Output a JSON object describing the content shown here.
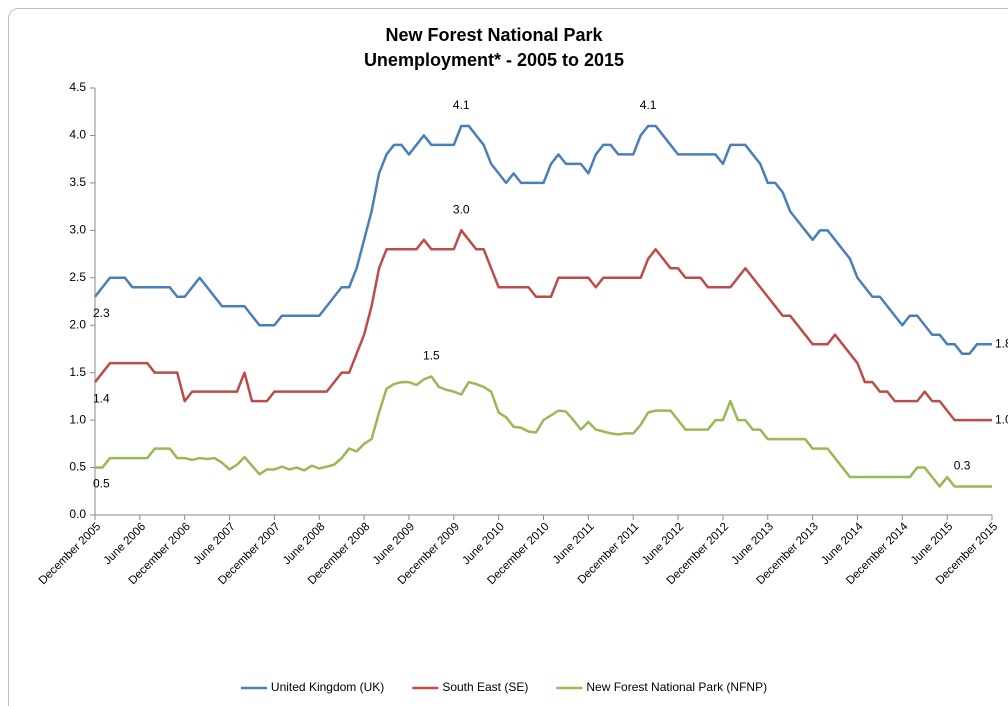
{
  "chart_data": {
    "type": "line",
    "title": [
      "New Forest National Park",
      "Unemployment* - 2005 to 2015"
    ],
    "categories": [
      "December 2005",
      null,
      null,
      null,
      null,
      null,
      "June 2006",
      null,
      null,
      null,
      null,
      null,
      "December 2006",
      null,
      null,
      null,
      null,
      null,
      "June 2007",
      null,
      null,
      null,
      null,
      null,
      "December 2007",
      null,
      null,
      null,
      null,
      null,
      "June 2008",
      null,
      null,
      null,
      null,
      null,
      "December 2008",
      null,
      null,
      null,
      null,
      null,
      "June 2009",
      null,
      null,
      null,
      null,
      null,
      "December 2009",
      null,
      null,
      null,
      null,
      null,
      "June 2010",
      null,
      null,
      null,
      null,
      null,
      "December 2010",
      null,
      null,
      null,
      null,
      null,
      "June 2011",
      null,
      null,
      null,
      null,
      null,
      "December 2011",
      null,
      null,
      null,
      null,
      null,
      "June 2012",
      null,
      null,
      null,
      null,
      null,
      "December 2012",
      null,
      null,
      null,
      null,
      null,
      "June 2013",
      null,
      null,
      null,
      null,
      null,
      "December 2013",
      null,
      null,
      null,
      null,
      null,
      "June 2014",
      null,
      null,
      null,
      null,
      null,
      "December 2014",
      null,
      null,
      null,
      null,
      null,
      "June 2015",
      null,
      null,
      null,
      null,
      null,
      "December 2015"
    ],
    "series": [
      {
        "name": "United Kingdom (UK)",
        "color": "#4a7ebb",
        "values": [
          2.3,
          2.4,
          2.5,
          2.5,
          2.5,
          2.4,
          2.4,
          2.4,
          2.4,
          2.4,
          2.4,
          2.3,
          2.3,
          2.4,
          2.5,
          2.4,
          2.3,
          2.2,
          2.2,
          2.2,
          2.2,
          2.1,
          2.0,
          2.0,
          2.0,
          2.1,
          2.1,
          2.1,
          2.1,
          2.1,
          2.1,
          2.2,
          2.3,
          2.4,
          2.4,
          2.6,
          2.9,
          3.2,
          3.6,
          3.8,
          3.9,
          3.9,
          3.8,
          3.9,
          4.0,
          3.9,
          3.9,
          3.9,
          3.9,
          4.1,
          4.1,
          4.0,
          3.9,
          3.7,
          3.6,
          3.5,
          3.6,
          3.5,
          3.5,
          3.5,
          3.5,
          3.7,
          3.8,
          3.7,
          3.7,
          3.7,
          3.6,
          3.8,
          3.9,
          3.9,
          3.8,
          3.8,
          3.8,
          4.0,
          4.1,
          4.1,
          4.0,
          3.9,
          3.8,
          3.8,
          3.8,
          3.8,
          3.8,
          3.8,
          3.7,
          3.9,
          3.9,
          3.9,
          3.8,
          3.7,
          3.5,
          3.5,
          3.4,
          3.2,
          3.1,
          3.0,
          2.9,
          3.0,
          3.0,
          2.9,
          2.8,
          2.7,
          2.5,
          2.4,
          2.3,
          2.3,
          2.2,
          2.1,
          2.0,
          2.1,
          2.1,
          2.0,
          1.9,
          1.9,
          1.8,
          1.8,
          1.7,
          1.7,
          1.8,
          1.8,
          1.8
        ],
        "value_labels": [
          "2.3",
          null,
          null,
          null,
          null,
          null,
          null,
          null,
          null,
          null,
          null,
          null,
          null,
          null,
          null,
          null,
          null,
          null,
          null,
          null,
          null,
          null,
          null,
          null,
          null,
          null,
          null,
          null,
          null,
          null,
          null,
          null,
          null,
          null,
          null,
          null,
          null,
          null,
          null,
          null,
          null,
          null,
          null,
          null,
          null,
          null,
          null,
          null,
          null,
          "4.1",
          null,
          null,
          null,
          null,
          null,
          null,
          null,
          null,
          null,
          null,
          null,
          null,
          null,
          null,
          null,
          null,
          null,
          null,
          null,
          null,
          null,
          null,
          null,
          null,
          "4.1",
          null,
          null,
          null,
          null,
          null,
          null,
          null,
          null,
          null,
          null,
          null,
          null,
          null,
          null,
          null,
          null,
          null,
          null,
          null,
          null,
          null,
          null,
          null,
          null,
          null,
          null,
          null,
          null,
          null,
          null,
          null,
          null,
          null,
          null,
          null,
          null,
          null,
          null,
          null,
          null,
          null,
          null,
          null,
          null,
          null,
          "1.8"
        ]
      },
      {
        "name": "South East (SE)",
        "color": "#be4b48",
        "values": [
          1.4,
          1.5,
          1.6,
          1.6,
          1.6,
          1.6,
          1.6,
          1.6,
          1.5,
          1.5,
          1.5,
          1.5,
          1.2,
          1.3,
          1.3,
          1.3,
          1.3,
          1.3,
          1.3,
          1.3,
          1.5,
          1.2,
          1.2,
          1.2,
          1.3,
          1.3,
          1.3,
          1.3,
          1.3,
          1.3,
          1.3,
          1.3,
          1.4,
          1.5,
          1.5,
          1.7,
          1.9,
          2.2,
          2.6,
          2.8,
          2.8,
          2.8,
          2.8,
          2.8,
          2.9,
          2.8,
          2.8,
          2.8,
          2.8,
          3.0,
          2.9,
          2.8,
          2.8,
          2.6,
          2.4,
          2.4,
          2.4,
          2.4,
          2.4,
          2.3,
          2.3,
          2.3,
          2.5,
          2.5,
          2.5,
          2.5,
          2.5,
          2.4,
          2.5,
          2.5,
          2.5,
          2.5,
          2.5,
          2.5,
          2.7,
          2.8,
          2.7,
          2.6,
          2.6,
          2.5,
          2.5,
          2.5,
          2.4,
          2.4,
          2.4,
          2.4,
          2.5,
          2.6,
          2.5,
          2.4,
          2.3,
          2.2,
          2.1,
          2.1,
          2.0,
          1.9,
          1.8,
          1.8,
          1.8,
          1.9,
          1.8,
          1.7,
          1.6,
          1.4,
          1.4,
          1.3,
          1.3,
          1.2,
          1.2,
          1.2,
          1.2,
          1.3,
          1.2,
          1.2,
          1.1,
          1.0,
          1.0,
          1.0,
          1.0,
          1.0,
          1.0
        ],
        "value_labels": [
          "1.4",
          null,
          null,
          null,
          null,
          null,
          null,
          null,
          null,
          null,
          null,
          null,
          null,
          null,
          null,
          null,
          null,
          null,
          null,
          null,
          null,
          null,
          null,
          null,
          null,
          null,
          null,
          null,
          null,
          null,
          null,
          null,
          null,
          null,
          null,
          null,
          null,
          null,
          null,
          null,
          null,
          null,
          null,
          null,
          null,
          null,
          null,
          null,
          null,
          "3.0",
          null,
          null,
          null,
          null,
          null,
          null,
          null,
          null,
          null,
          null,
          null,
          null,
          null,
          null,
          null,
          null,
          null,
          null,
          null,
          null,
          null,
          null,
          null,
          null,
          null,
          null,
          null,
          null,
          null,
          null,
          null,
          null,
          null,
          null,
          null,
          null,
          null,
          null,
          null,
          null,
          null,
          null,
          null,
          null,
          null,
          null,
          null,
          null,
          null,
          null,
          null,
          null,
          null,
          null,
          null,
          null,
          null,
          null,
          null,
          null,
          null,
          null,
          null,
          null,
          null,
          null,
          null,
          null,
          null,
          null,
          "1.0"
        ]
      },
      {
        "name": "New Forest National Park (NFNP)",
        "color": "#98b954",
        "values": [
          0.5,
          0.5,
          0.6,
          0.6,
          0.6,
          0.6,
          0.6,
          0.6,
          0.7,
          0.7,
          0.7,
          0.6,
          0.6,
          0.58,
          0.6,
          0.59,
          0.6,
          0.55,
          0.48,
          0.53,
          0.61,
          0.52,
          0.43,
          0.48,
          0.48,
          0.51,
          0.48,
          0.5,
          0.47,
          0.52,
          0.49,
          0.51,
          0.53,
          0.6,
          0.7,
          0.67,
          0.75,
          0.8,
          1.08,
          1.33,
          1.38,
          1.4,
          1.4,
          1.37,
          1.43,
          1.46,
          1.35,
          1.32,
          1.3,
          1.27,
          1.4,
          1.38,
          1.35,
          1.3,
          1.08,
          1.03,
          0.93,
          0.92,
          0.88,
          0.87,
          1.0,
          1.05,
          1.1,
          1.09,
          1.0,
          0.9,
          0.98,
          0.9,
          0.88,
          0.86,
          0.85,
          0.86,
          0.86,
          0.95,
          1.08,
          1.1,
          1.1,
          1.1,
          1.0,
          0.9,
          0.9,
          0.9,
          0.9,
          1.0,
          1.0,
          1.2,
          1.0,
          1.0,
          0.9,
          0.9,
          0.8,
          0.8,
          0.8,
          0.8,
          0.8,
          0.8,
          0.7,
          0.7,
          0.7,
          0.6,
          0.5,
          0.4,
          0.4,
          0.4,
          0.4,
          0.4,
          0.4,
          0.4,
          0.4,
          0.4,
          0.5,
          0.5,
          0.4,
          0.3,
          0.4,
          0.3,
          0.3,
          0.3,
          0.3,
          0.3,
          0.3
        ],
        "value_labels": [
          "0.5",
          null,
          null,
          null,
          null,
          null,
          null,
          null,
          null,
          null,
          null,
          null,
          null,
          null,
          null,
          null,
          null,
          null,
          null,
          null,
          null,
          null,
          null,
          null,
          null,
          null,
          null,
          null,
          null,
          null,
          null,
          null,
          null,
          null,
          null,
          null,
          null,
          null,
          null,
          null,
          null,
          null,
          null,
          null,
          null,
          "1.5",
          null,
          null,
          null,
          null,
          null,
          null,
          null,
          null,
          null,
          null,
          null,
          null,
          null,
          null,
          null,
          null,
          null,
          null,
          null,
          null,
          null,
          null,
          null,
          null,
          null,
          null,
          null,
          null,
          null,
          null,
          null,
          null,
          null,
          null,
          null,
          null,
          null,
          null,
          null,
          null,
          null,
          null,
          null,
          null,
          null,
          null,
          null,
          null,
          null,
          null,
          null,
          null,
          null,
          null,
          null,
          null,
          null,
          null,
          null,
          null,
          null,
          null,
          null,
          null,
          null,
          null,
          null,
          null,
          null,
          null,
          "0.3"
        ]
      }
    ],
    "ylim": [
      0,
      4.5
    ],
    "yticks": [
      {
        "value": 0,
        "label": "0.0"
      },
      0.5,
      {
        "value": 1,
        "label": "1.0"
      },
      1.5,
      {
        "value": 2,
        "label": "2.0"
      },
      2.5,
      {
        "value": 3,
        "label": "3.0"
      },
      3.5,
      {
        "value": 4,
        "label": "4.0"
      },
      4.5
    ],
    "legend": "bottom"
  }
}
